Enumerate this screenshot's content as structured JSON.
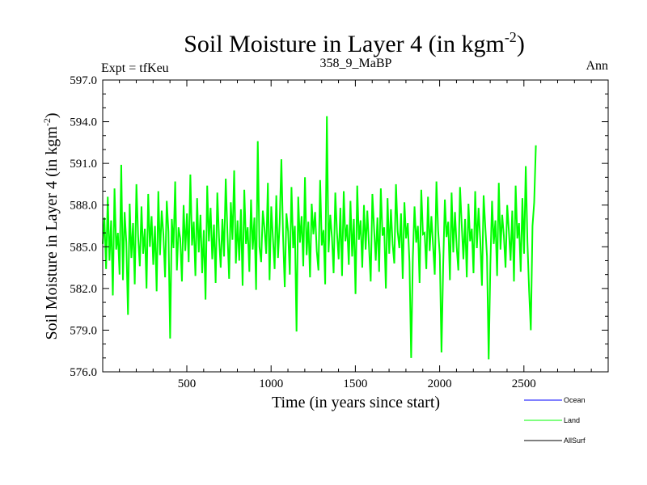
{
  "chart_data": {
    "type": "line",
    "title": "Soil Moisture in Layer 4 (in kgm",
    "title_sup": "-2",
    "title_end": ")",
    "subtitle_left": "Expt = tfKeu",
    "subtitle_center": "358_9_MaBP",
    "subtitle_right": "Ann",
    "xlabel": "Time (in years since start)",
    "ylabel": "Soil Moisture in Layer 4 (in kgm",
    "ylabel_sup": "-2",
    "ylabel_end": ")",
    "xlim": [
      1,
      3000
    ],
    "ylim": [
      576.0,
      597.0
    ],
    "x_ticks": [
      500,
      1000,
      1500,
      2000,
      2500
    ],
    "y_ticks": [
      "576.0",
      "579.0",
      "582.0",
      "585.0",
      "588.0",
      "591.0",
      "594.0",
      "597.0"
    ],
    "grid": false,
    "legend_position": "bottom-right",
    "series": [
      {
        "name": "Ocean",
        "color": "#0000ff",
        "values": []
      },
      {
        "name": "Land",
        "color": "#00ff00",
        "x_start": 1,
        "x_step": 10,
        "values": [
          585.2,
          587.1,
          583.4,
          588.6,
          584.0,
          586.9,
          581.5,
          589.2,
          584.8,
          586.0,
          583.0,
          590.9,
          582.6,
          587.5,
          585.3,
          580.1,
          588.1,
          584.2,
          586.7,
          582.3,
          589.5,
          585.8,
          583.6,
          587.9,
          584.5,
          586.3,
          582.0,
          588.8,
          585.0,
          587.2,
          583.7,
          586.5,
          581.8,
          589.0,
          584.4,
          587.6,
          585.9,
          582.8,
          588.3,
          586.1,
          578.4,
          587.0,
          584.9,
          589.7,
          583.3,
          586.4,
          585.6,
          582.5,
          588.0,
          584.7,
          587.4,
          583.9,
          590.2,
          585.1,
          586.8,
          582.9,
          588.5,
          584.6,
          587.3,
          583.1,
          586.2,
          581.2,
          589.4,
          585.4,
          587.8,
          584.1,
          586.6,
          582.4,
          588.9,
          585.7,
          583.5,
          587.0,
          584.3,
          589.9,
          586.0,
          582.7,
          588.2,
          585.5,
          590.5,
          583.8,
          586.9,
          584.0,
          587.7,
          582.2,
          589.1,
          585.2,
          586.4,
          583.2,
          588.4,
          584.8,
          587.1,
          581.9,
          592.6,
          585.0,
          583.9,
          587.6,
          586.3,
          584.5,
          589.6,
          582.6,
          587.9,
          585.6,
          583.4,
          588.7,
          584.2,
          586.7,
          591.3,
          585.8,
          582.1,
          587.4,
          586.1,
          583.0,
          589.3,
          584.9,
          586.5,
          578.9,
          588.6,
          585.3,
          587.2,
          583.6,
          590.0,
          584.4,
          586.8,
          582.8,
          588.1,
          585.9,
          587.5,
          584.7,
          583.3,
          589.8,
          585.1,
          586.2,
          582.3,
          594.4,
          584.6,
          587.3,
          585.7,
          583.1,
          588.9,
          586.0,
          584.1,
          587.8,
          582.9,
          589.0,
          585.4,
          586.6,
          583.7,
          588.3,
          584.3,
          587.0,
          581.6,
          589.4,
          585.5,
          586.9,
          583.5,
          588.0,
          584.8,
          587.6,
          585.0,
          582.5,
          588.8,
          586.3,
          584.0,
          587.1,
          583.2,
          589.2,
          585.8,
          586.4,
          582.0,
          588.5,
          584.5,
          587.7,
          585.2,
          583.8,
          589.5,
          586.1,
          584.9,
          587.4,
          582.7,
          588.2,
          585.6,
          586.7,
          583.9,
          577.0,
          584.2,
          587.9,
          585.3,
          586.5,
          582.4,
          589.1,
          585.9,
          586.0,
          583.4,
          588.6,
          584.7,
          587.2,
          585.1,
          583.0,
          589.7,
          586.2,
          584.4,
          577.4,
          583.6,
          588.4,
          585.7,
          586.8,
          582.6,
          588.9,
          584.6,
          587.5,
          585.0,
          583.3,
          589.3,
          586.6,
          584.1,
          587.0,
          582.8,
          588.1,
          585.4,
          586.3,
          583.1,
          589.0,
          584.9,
          587.8,
          585.5,
          582.2,
          588.7,
          586.4,
          584.3,
          576.9,
          583.7,
          588.3,
          585.2,
          586.9,
          582.9,
          589.6,
          584.8,
          587.3,
          585.8,
          583.5,
          588.0,
          586.1,
          584.0,
          587.6,
          582.5,
          589.4,
          585.6,
          586.7,
          583.2,
          588.5,
          584.5,
          590.8,
          585.3,
          581.8,
          579.0,
          586.5,
          588.2,
          592.3
        ]
      },
      {
        "name": "AllSurf",
        "color": "#000000",
        "values": []
      }
    ]
  }
}
